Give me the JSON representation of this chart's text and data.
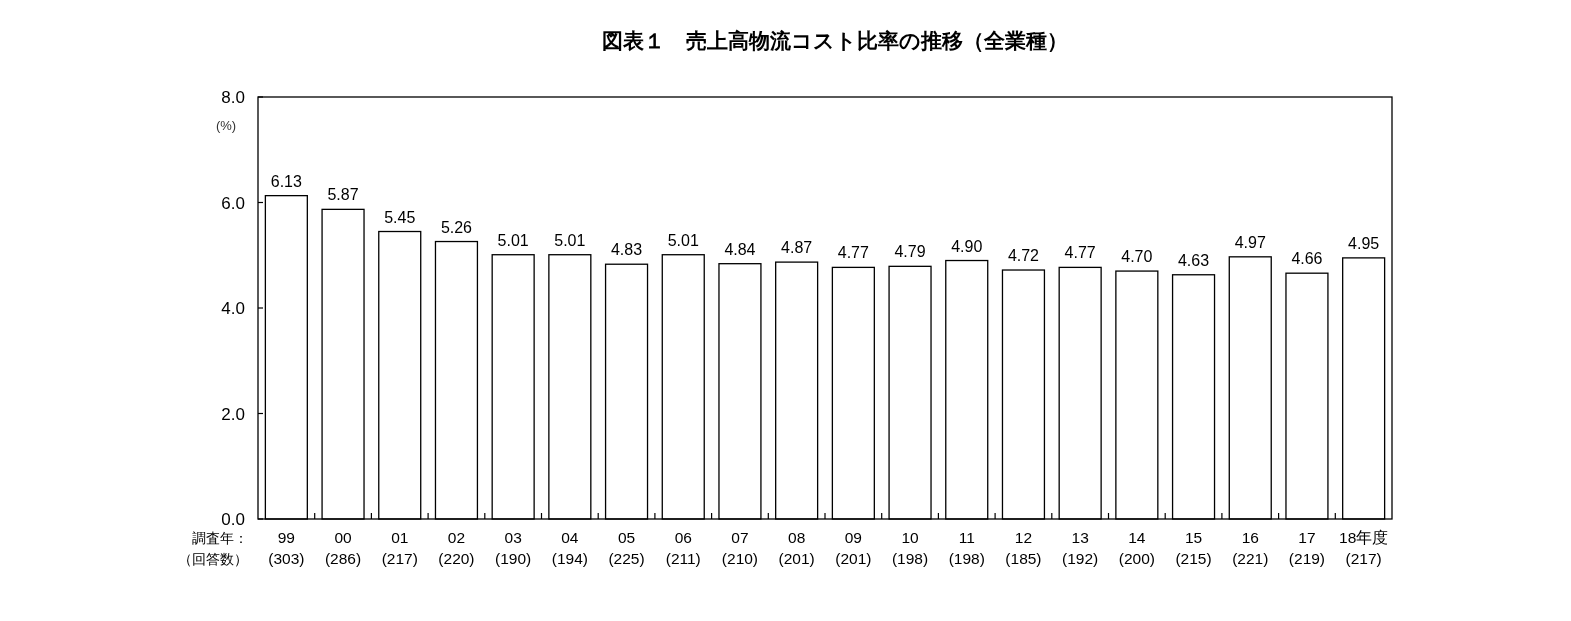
{
  "chart_data": {
    "type": "bar",
    "title": "図表１　売上高物流コスト比率の推移（全業種）",
    "ylabel": "(%)",
    "xlabel": "調査年：",
    "annotations": [
      "（回答数）"
    ],
    "categories": [
      "99\n(303)",
      "00\n(286)",
      "01\n(217)",
      "02\n(220)",
      "03\n(190)",
      "04\n(194)",
      "05\n(225)",
      "06\n(211)",
      "07\n(210)",
      "08\n(201)",
      "09\n(201)",
      "10\n(198)",
      "11\n(198)",
      "12\n(185)",
      "13\n(192)",
      "14\n(200)",
      "15\n(215)",
      "16\n(221)",
      "17\n(219)",
      "18年度\n(217)"
    ],
    "values": [
      6.13,
      5.87,
      5.45,
      5.26,
      5.01,
      5.01,
      4.83,
      5.01,
      4.84,
      4.87,
      4.77,
      4.79,
      4.9,
      4.72,
      4.77,
      4.7,
      4.63,
      4.97,
      4.66,
      4.95
    ],
    "value_labels": [
      "6.13",
      "5.87",
      "5.45",
      "5.26",
      "5.01",
      "5.01",
      "4.83",
      "5.01",
      "4.84",
      "4.87",
      "4.77",
      "4.79",
      "4.90",
      "4.72",
      "4.77",
      "4.70",
      "4.63",
      "4.97",
      "4.66",
      "4.95"
    ],
    "color": "#ffffff",
    "ylim": [
      0,
      8
    ],
    "yticks": [
      {
        "value": 0,
        "label": "0.0"
      },
      {
        "value": 2,
        "label": "2.0"
      },
      {
        "value": 4,
        "label": "4.0"
      },
      {
        "value": 6,
        "label": "6.0"
      },
      {
        "value": 8,
        "label": "8.0"
      }
    ]
  }
}
